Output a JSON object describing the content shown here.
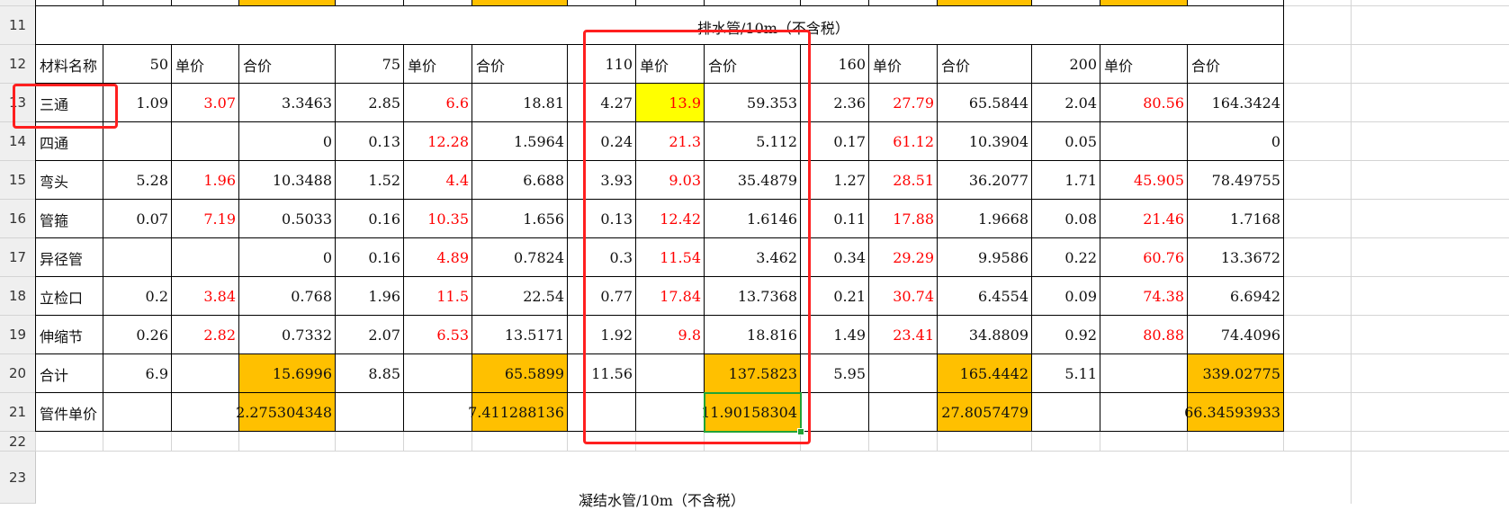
{
  "section_title_top": "排水管/10m（不含税）",
  "section_title_bottom": "凝结水管/10m（不含税）",
  "row_numbers": [
    "11",
    "12",
    "13",
    "14",
    "15",
    "16",
    "17",
    "18",
    "19",
    "20",
    "21",
    "22",
    "23"
  ],
  "header": {
    "name": "材料名称",
    "c50": "50",
    "u50": "单价",
    "t50": "合价",
    "c75": "75",
    "u75": "单价",
    "t75": "合价",
    "c110": "110",
    "u110": "单价",
    "t110": "合价",
    "c160": "160",
    "u160": "单价",
    "t160": "合价",
    "c200": "200",
    "u200": "单价",
    "t200": "合价"
  },
  "rows": [
    {
      "name": "三通",
      "q50": "1.09",
      "p50": "3.07",
      "s50": "3.3463",
      "q75": "2.85",
      "p75": "6.6",
      "s75": "18.81",
      "q110": "4.27",
      "p110": "13.9",
      "s110": "59.353",
      "q160": "2.36",
      "p160": "27.79",
      "s160": "65.5844",
      "q200": "2.04",
      "p200": "80.56",
      "s200": "164.3424"
    },
    {
      "name": "四通",
      "q50": "",
      "p50": "",
      "s50": "0",
      "q75": "0.13",
      "p75": "12.28",
      "s75": "1.5964",
      "q110": "0.24",
      "p110": "21.3",
      "s110": "5.112",
      "q160": "0.17",
      "p160": "61.12",
      "s160": "10.3904",
      "q200": "0.05",
      "p200": "",
      "s200": "0"
    },
    {
      "name": "弯头",
      "q50": "5.28",
      "p50": "1.96",
      "s50": "10.3488",
      "q75": "1.52",
      "p75": "4.4",
      "s75": "6.688",
      "q110": "3.93",
      "p110": "9.03",
      "s110": "35.4879",
      "q160": "1.27",
      "p160": "28.51",
      "s160": "36.2077",
      "q200": "1.71",
      "p200": "45.905",
      "s200": "78.49755"
    },
    {
      "name": "管箍",
      "q50": "0.07",
      "p50": "7.19",
      "s50": "0.5033",
      "q75": "0.16",
      "p75": "10.35",
      "s75": "1.656",
      "q110": "0.13",
      "p110": "12.42",
      "s110": "1.6146",
      "q160": "0.11",
      "p160": "17.88",
      "s160": "1.9668",
      "q200": "0.08",
      "p200": "21.46",
      "s200": "1.7168"
    },
    {
      "name": "异径管",
      "q50": "",
      "p50": "",
      "s50": "0",
      "q75": "0.16",
      "p75": "4.89",
      "s75": "0.7824",
      "q110": "0.3",
      "p110": "11.54",
      "s110": "3.462",
      "q160": "0.34",
      "p160": "29.29",
      "s160": "9.9586",
      "q200": "0.22",
      "p200": "60.76",
      "s200": "13.3672"
    },
    {
      "name": "立检口",
      "q50": "0.2",
      "p50": "3.84",
      "s50": "0.768",
      "q75": "1.96",
      "p75": "11.5",
      "s75": "22.54",
      "q110": "0.77",
      "p110": "17.84",
      "s110": "13.7368",
      "q160": "0.21",
      "p160": "30.74",
      "s160": "6.4554",
      "q200": "0.09",
      "p200": "74.38",
      "s200": "6.6942"
    },
    {
      "name": "伸缩节",
      "q50": "0.26",
      "p50": "2.82",
      "s50": "0.7332",
      "q75": "2.07",
      "p75": "6.53",
      "s75": "13.5171",
      "q110": "1.92",
      "p110": "9.8",
      "s110": "18.816",
      "q160": "1.49",
      "p160": "23.41",
      "s160": "34.8809",
      "q200": "0.92",
      "p200": "80.88",
      "s200": "74.4096"
    },
    {
      "name": "合计",
      "q50": "6.9",
      "p50": "",
      "s50": "15.6996",
      "q75": "8.85",
      "p75": "",
      "s75": "65.5899",
      "q110": "11.56",
      "p110": "",
      "s110": "137.5823",
      "q160": "5.95",
      "p160": "",
      "s160": "165.4442",
      "q200": "5.11",
      "p200": "",
      "s200": "339.02775"
    },
    {
      "name": "管件单价",
      "q50": "",
      "p50": "",
      "s50": "2.275304348",
      "q75": "",
      "p75": "",
      "s75": "7.411288136",
      "q110": "",
      "p110": "",
      "s110": "11.90158304",
      "q160": "",
      "p160": "",
      "s160": "27.8057479",
      "q200": "",
      "p200": "",
      "s200": "66.34593933"
    }
  ],
  "colors": {
    "orange": "#ffc000",
    "yellow": "#ffff00",
    "red_text": "#ff0000",
    "annotation_red": "#ff1f1f",
    "selection_green": "#21a336"
  }
}
